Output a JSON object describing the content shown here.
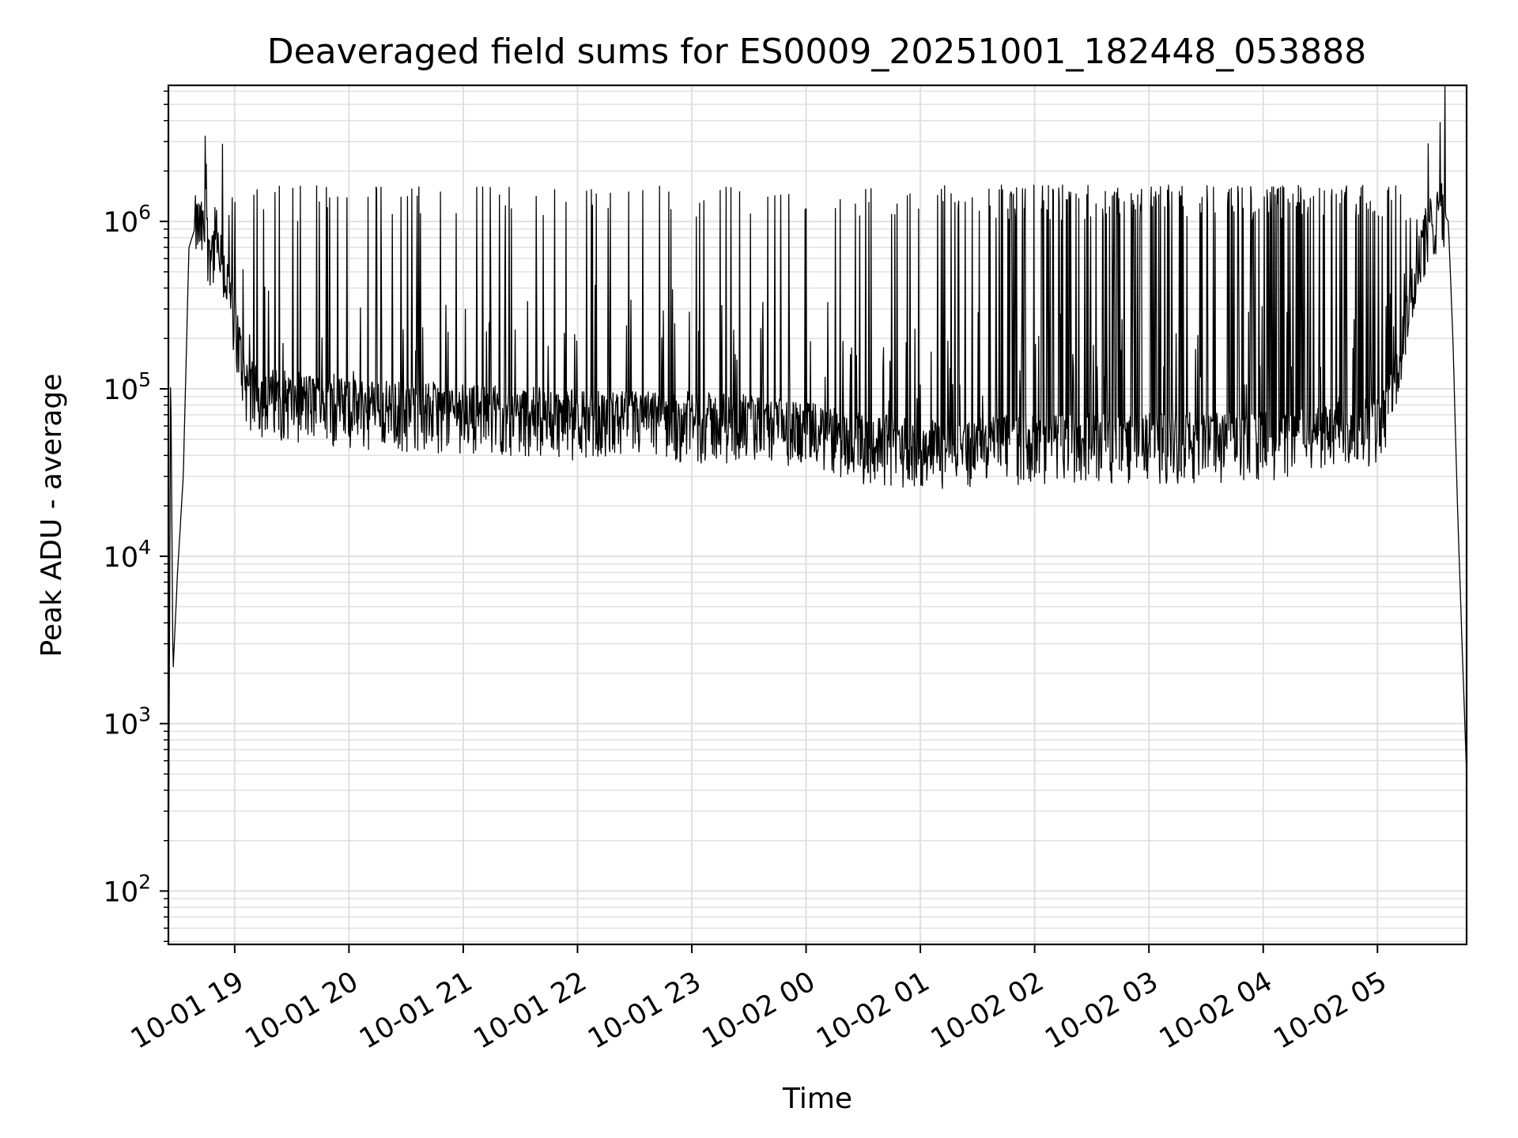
{
  "chart_data": {
    "type": "line",
    "title": "Deaveraged field sums for ES0009_20251001_182448_053888",
    "xlabel": "Time",
    "ylabel": "Peak ADU - average",
    "yscale": "log",
    "xlim_hours": [
      18.42,
      29.78
    ],
    "ylim": [
      48,
      6500000
    ],
    "grid": true,
    "legend": "none",
    "line_color": "#000000",
    "grid_color": "#e0e0e0",
    "x_ticks": [
      {
        "hour": 19,
        "label": "10-01 19"
      },
      {
        "hour": 20,
        "label": "10-01 20"
      },
      {
        "hour": 21,
        "label": "10-01 21"
      },
      {
        "hour": 22,
        "label": "10-01 22"
      },
      {
        "hour": 23,
        "label": "10-01 23"
      },
      {
        "hour": 24,
        "label": "10-02 00"
      },
      {
        "hour": 25,
        "label": "10-02 01"
      },
      {
        "hour": 26,
        "label": "10-02 02"
      },
      {
        "hour": 27,
        "label": "10-02 03"
      },
      {
        "hour": 28,
        "label": "10-02 04"
      },
      {
        "hour": 29,
        "label": "10-02 05"
      }
    ],
    "y_ticks": [
      {
        "value": 100,
        "base": "10",
        "exp": "2"
      },
      {
        "value": 1000,
        "base": "10",
        "exp": "3"
      },
      {
        "value": 10000,
        "base": "10",
        "exp": "4"
      },
      {
        "value": 100000,
        "base": "10",
        "exp": "5"
      },
      {
        "value": 1000000,
        "base": "10",
        "exp": "6"
      }
    ],
    "baseline": {
      "hours": [
        18.42,
        18.44,
        18.46,
        18.5,
        18.55,
        18.6,
        18.65,
        18.7,
        18.8,
        18.9,
        19.0,
        19.05,
        19.1,
        19.2,
        19.5,
        20.0,
        21.0,
        22.0,
        23.0,
        23.5,
        24.0,
        24.5,
        25.0,
        25.5,
        26.0,
        27.0,
        28.0,
        28.5,
        29.0,
        29.1,
        29.2,
        29.3,
        29.4,
        29.5,
        29.55,
        29.62,
        29.66,
        29.7,
        29.74,
        29.78
      ],
      "values": [
        100,
        150000,
        2000,
        8000,
        30000,
        700000,
        900000,
        850000,
        650000,
        500000,
        250000,
        150000,
        100000,
        85000,
        80000,
        72000,
        68000,
        62000,
        60000,
        58000,
        52000,
        45000,
        42000,
        42000,
        45000,
        45000,
        46000,
        50000,
        58000,
        75000,
        150000,
        350000,
        700000,
        1000000,
        1200000,
        1000000,
        200000,
        20000,
        3000,
        500
      ]
    },
    "scatter_band": {
      "low": 0.6,
      "high": 1.6
    },
    "spikes": [
      {
        "hour": 18.75,
        "value": 2200000
      },
      {
        "hour": 19.0,
        "value": 1300000
      },
      {
        "hour": 19.55,
        "value": 1000000
      },
      {
        "hour": 19.9,
        "value": 1400000
      },
      {
        "hour": 20.38,
        "value": 1100000
      },
      {
        "hour": 20.8,
        "value": 1500000
      },
      {
        "hour": 21.12,
        "value": 1600000
      },
      {
        "hour": 21.4,
        "value": 1600000
      },
      {
        "hour": 21.8,
        "value": 1550000
      },
      {
        "hour": 22.12,
        "value": 1550000
      },
      {
        "hour": 22.45,
        "value": 1500000
      },
      {
        "hour": 22.8,
        "value": 1500000
      },
      {
        "hour": 23.3,
        "value": 1600000
      },
      {
        "hour": 23.85,
        "value": 1450000
      },
      {
        "hour": 24.3,
        "value": 1350000
      },
      {
        "hour": 24.55,
        "value": 1300000
      },
      {
        "hour": 25.3,
        "value": 1300000
      },
      {
        "hour": 25.8,
        "value": 1400000
      },
      {
        "hour": 26.3,
        "value": 1500000
      },
      {
        "hour": 26.7,
        "value": 1500000
      },
      {
        "hour": 27.2,
        "value": 1500000
      },
      {
        "hour": 27.7,
        "value": 1550000
      },
      {
        "hour": 28.15,
        "value": 1600000
      },
      {
        "hour": 28.6,
        "value": 1550000
      },
      {
        "hour": 29.1,
        "value": 1600000
      },
      {
        "hour": 29.55,
        "value": 3900000
      }
    ]
  }
}
